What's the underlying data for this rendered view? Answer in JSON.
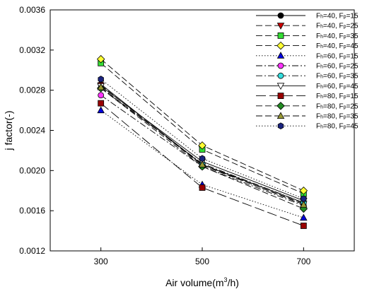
{
  "chart_data": {
    "type": "line",
    "title": "",
    "xlabel": "Air volume(m³/h)",
    "xlabel_parts": [
      "Air volume(m",
      "3",
      "/h)"
    ],
    "ylabel": "j factor(-)",
    "x": [
      300,
      500,
      700
    ],
    "xticks": [
      "300",
      "500",
      "700"
    ],
    "ylim": [
      0.0012,
      0.0036
    ],
    "yticks": [
      "0.0012",
      "0.0016",
      "0.0020",
      "0.0024",
      "0.0028",
      "0.0032",
      "0.0036"
    ],
    "grid": false,
    "legend_position": "top-right",
    "series": [
      {
        "name": "Fh=40, Fp=15",
        "fh": "40",
        "fp": "15",
        "values": [
          0.00286,
          0.00206,
          0.00168
        ],
        "marker": "circle",
        "color": "#000000",
        "dash": "solid"
      },
      {
        "name": "Fh=40, Fp=25",
        "fh": "40",
        "fp": "25",
        "values": [
          0.00285,
          0.00205,
          0.00167
        ],
        "marker": "triangle-down",
        "color": "#cc0000",
        "dash": "long"
      },
      {
        "name": "Fh=40, Fp=35",
        "fh": "40",
        "fp": "35",
        "values": [
          0.00307,
          0.00221,
          0.00177
        ],
        "marker": "square",
        "color": "#33dd33",
        "dash": "long"
      },
      {
        "name": "Fh=40, Fp=45",
        "fh": "40",
        "fp": "45",
        "values": [
          0.00311,
          0.00225,
          0.0018
        ],
        "marker": "diamond",
        "color": "#ffff33",
        "dash": "long"
      },
      {
        "name": "Fh=60, Fp=15",
        "fh": "60",
        "fp": "15",
        "values": [
          0.0026,
          0.00186,
          0.00153
        ],
        "marker": "triangle-up",
        "color": "#0000dd",
        "dash": "dot"
      },
      {
        "name": "Fh=60, Fp=25",
        "fh": "60",
        "fp": "25",
        "values": [
          0.00275,
          0.00204,
          0.00165
        ],
        "marker": "circle",
        "color": "#ff33ff",
        "dash": "dashdot"
      },
      {
        "name": "Fh=60, Fp=35",
        "fh": "60",
        "fp": "35",
        "values": [
          0.00282,
          0.00207,
          0.00168
        ],
        "marker": "circle",
        "color": "#33dddd",
        "dash": "dashdot"
      },
      {
        "name": "Fh=60, Fp=45",
        "fh": "60",
        "fp": "45",
        "values": [
          0.00284,
          0.00209,
          0.0017
        ],
        "marker": "triangle-down",
        "color": "#ffffff",
        "dash": "solid"
      },
      {
        "name": "Fh=80, Fp=15",
        "fh": "80",
        "fp": "15",
        "values": [
          0.00267,
          0.00183,
          0.00145
        ],
        "marker": "square",
        "color": "#990000",
        "dash": "longdash"
      },
      {
        "name": "Fh=80, Fp=25",
        "fh": "80",
        "fp": "25",
        "values": [
          0.00282,
          0.00204,
          0.00162
        ],
        "marker": "diamond",
        "color": "#228b22",
        "dash": "long"
      },
      {
        "name": "Fh=80, Fp=35",
        "fh": "80",
        "fp": "35",
        "values": [
          0.00283,
          0.00206,
          0.00166
        ],
        "marker": "triangle-up",
        "color": "#999933",
        "dash": "long"
      },
      {
        "name": "Fh=80, Fp=45",
        "fh": "80",
        "fp": "45",
        "values": [
          0.00291,
          0.00212,
          0.00172
        ],
        "marker": "hexagon",
        "color": "#1a237e",
        "dash": "dot"
      }
    ]
  }
}
